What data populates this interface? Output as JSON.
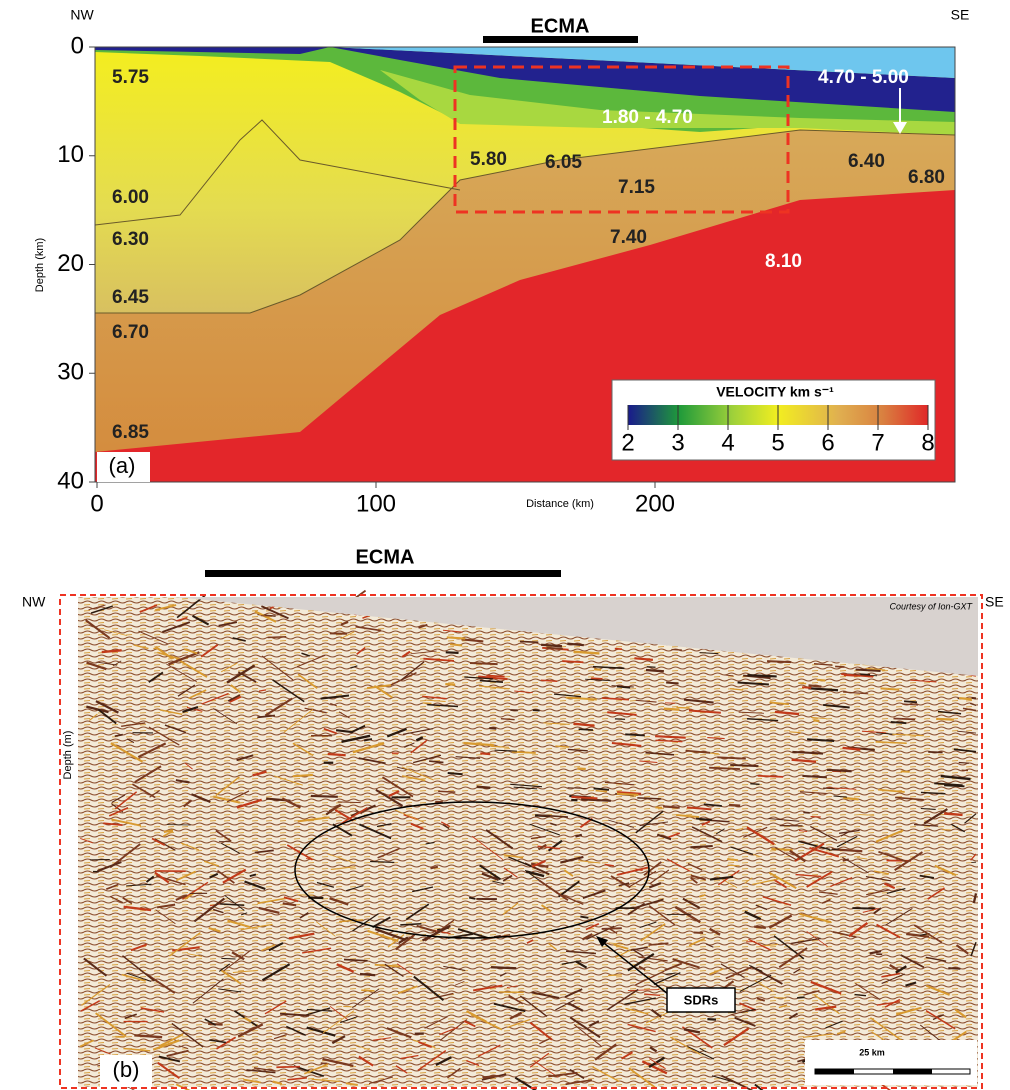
{
  "panel_a": {
    "left_label": "NW",
    "right_label": "SE",
    "bar_label": "ECMA",
    "y_axis_label": "Depth (km)",
    "yticks": [
      0,
      10,
      20,
      30,
      40
    ],
    "x_axis_label": "Distance (km)",
    "xticks": [
      0,
      100,
      200
    ],
    "velocity_labels": [
      "5.75",
      "6.00",
      "6.30",
      "6.45",
      "6.70",
      "6.85",
      "5.80",
      "6.05",
      "7.15",
      "7.40",
      "8.10",
      "1.80 - 4.70",
      "4.70 - 5.00",
      "6.40",
      "6.80"
    ],
    "colorbar": {
      "title": "VELOCITY km s⁻¹",
      "ticks": [
        2,
        3,
        4,
        5,
        6,
        7,
        8
      ]
    },
    "panel_label": "(a)"
  },
  "panel_b": {
    "bar_label": "ECMA",
    "left_label": "NW",
    "right_label": "SE",
    "credit": "Courtesy of Ion-GXT",
    "y_axis_label": "Depth (m)",
    "annotation": "SDRs",
    "scale_label": "25 km",
    "panel_label": "(b)"
  }
}
